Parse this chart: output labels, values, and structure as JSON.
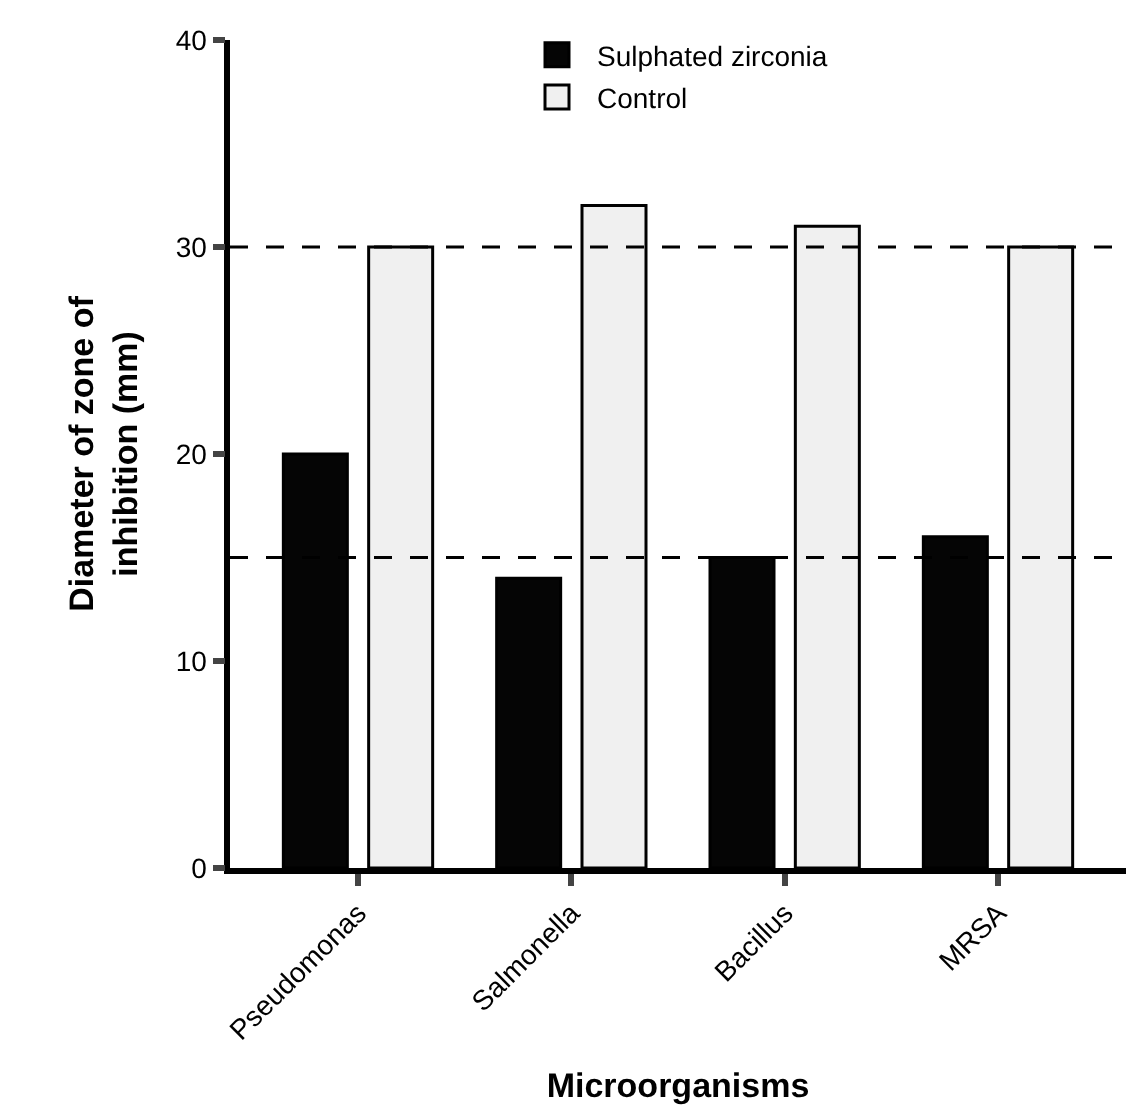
{
  "chart_data": {
    "type": "bar",
    "xlabel": "Microorganisms",
    "ylabel": "Diameter of zone of\ninhibition (mm)",
    "categories": [
      "Pseudomonas",
      "Salmonella",
      "Bacillus",
      "MRSA"
    ],
    "series": [
      {
        "name": "Sulphated zirconia",
        "color": "#050505",
        "values": [
          20,
          14,
          15,
          16
        ]
      },
      {
        "name": "Control",
        "color": "#f0f0f0",
        "values": [
          30,
          32,
          31,
          30
        ]
      }
    ],
    "ylim": [
      0,
      40
    ],
    "yticks": [
      0,
      10,
      20,
      30,
      40
    ],
    "ref_lines": [
      {
        "axis": "y",
        "value": 30,
        "color": "#000000",
        "line_style": "dashed"
      },
      {
        "axis": "y",
        "value": 15,
        "color": "#000000",
        "line_style": "dashed"
      }
    ],
    "legend": "top"
  }
}
